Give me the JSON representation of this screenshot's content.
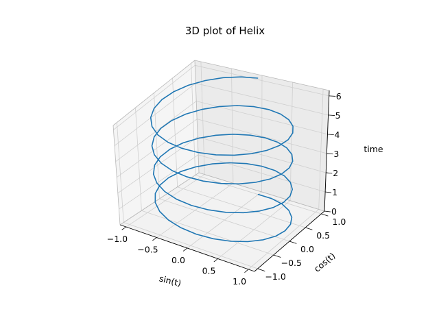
{
  "chart_data": {
    "type": "line3d",
    "title": "3D plot of Helix",
    "xlabel": "sin(t)",
    "ylabel": "cos(t)",
    "zlabel": "time",
    "xlim": [
      -1.1,
      1.1
    ],
    "ylim": [
      -1.1,
      1.1
    ],
    "zlim": [
      0,
      6.28
    ],
    "x_ticks": [
      -1.0,
      -0.5,
      0.0,
      0.5,
      1.0
    ],
    "y_ticks": [
      -1.0,
      -0.5,
      0.0,
      0.5,
      1.0
    ],
    "z_ticks": [
      0,
      1,
      2,
      3,
      4,
      5,
      6
    ],
    "x_tick_labels": [
      "−1.0",
      "−0.5",
      "0.0",
      "0.5",
      "1.0"
    ],
    "y_tick_labels": [
      "−1.0",
      "−0.5",
      "0.0",
      "0.5",
      "1.0"
    ],
    "z_tick_labels": [
      "0",
      "1",
      "2",
      "3",
      "4",
      "5",
      "6"
    ],
    "grid": true,
    "line_color": "#1f77b4",
    "series": [
      {
        "x_expr": "sin(t)",
        "y_expr": "cos(t)",
        "t_range": [
          0,
          6.28
        ],
        "turns": 4,
        "samples": 100
      }
    ]
  }
}
